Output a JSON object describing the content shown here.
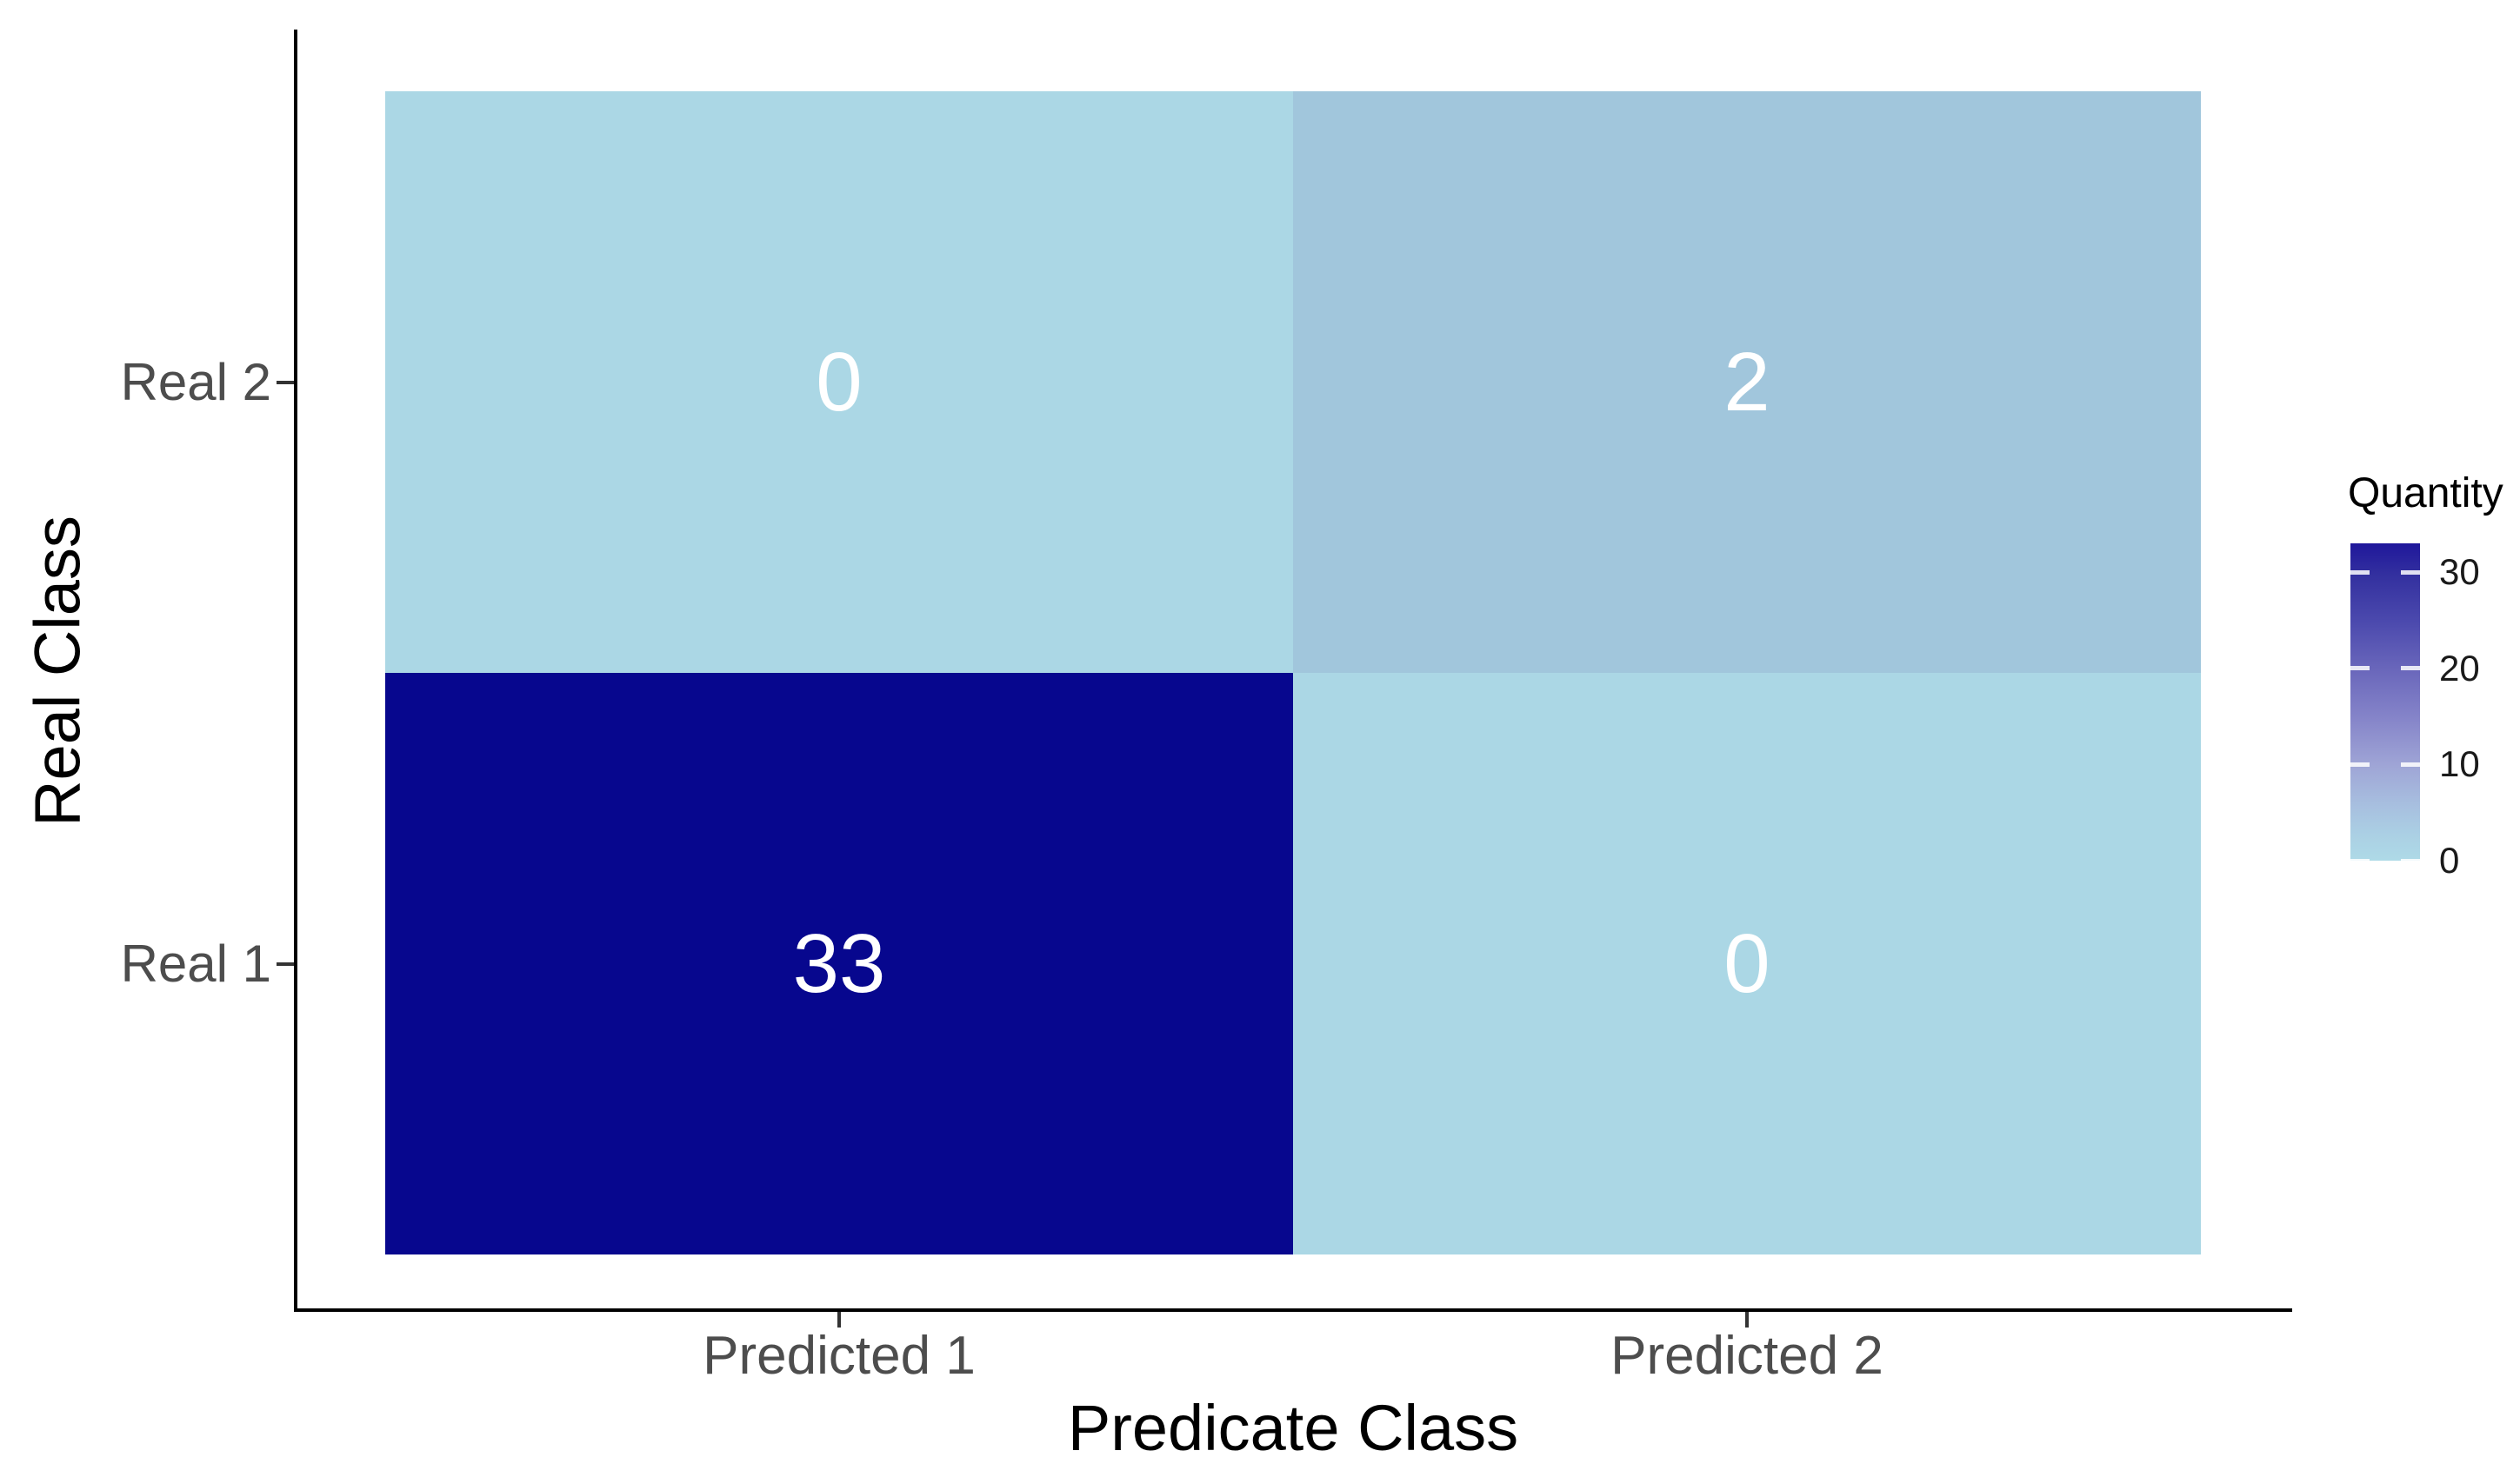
{
  "figure": {
    "background_color": "#ffffff",
    "axis_line_color": "#000000",
    "tick_color": "#333333",
    "tick_label_color": "#4d4d4d",
    "cell_text_color": "#ffffff"
  },
  "chart_data": {
    "type": "heatmap",
    "title": "",
    "xlabel": "Predicate Class",
    "ylabel": "Real Class",
    "x_categories": [
      "Predicted 1",
      "Predicted 2"
    ],
    "y_categories_top_to_bottom": [
      "Real 2",
      "Real 1"
    ],
    "cells": [
      {
        "row": "Real 2",
        "col": "Predicted 1",
        "value": "0",
        "color": "#abd7e5"
      },
      {
        "row": "Real 2",
        "col": "Predicted 2",
        "value": "2",
        "color": "#a1c6dc"
      },
      {
        "row": "Real 1",
        "col": "Predicted 1",
        "value": "33",
        "color": "#07078e"
      },
      {
        "row": "Real 1",
        "col": "Predicted 2",
        "value": "0",
        "color": "#abd7e5"
      }
    ],
    "legend": {
      "title": "Quantity",
      "min": 0,
      "max": 33,
      "tick_values": [
        30,
        20,
        10,
        0
      ],
      "low_color": "#add8e6",
      "high_color": "#00008b",
      "gradient_stops_top_to_bottom": [
        {
          "pos": 0,
          "color": "#1f179b"
        },
        {
          "pos": 10,
          "color": "#33309f"
        },
        {
          "pos": 25,
          "color": "#4c4aae"
        },
        {
          "pos": 40,
          "color": "#6a67bb"
        },
        {
          "pos": 55,
          "color": "#8584c9"
        },
        {
          "pos": 70,
          "color": "#9fa5d6"
        },
        {
          "pos": 82,
          "color": "#a7bedf"
        },
        {
          "pos": 92,
          "color": "#abd0e4"
        },
        {
          "pos": 100,
          "color": "#aedae7"
        }
      ],
      "grid": false,
      "legend_position": "right"
    },
    "axis_ranges": {
      "x": "categorical (2 classes)",
      "y": "categorical (2 classes)"
    }
  }
}
